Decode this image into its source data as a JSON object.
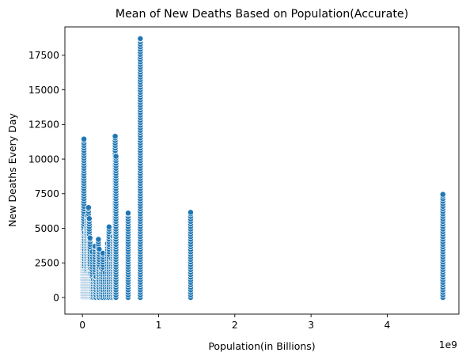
{
  "chart_data": {
    "type": "scatter",
    "title": "Mean of New Deaths Based on Population(Accurate)",
    "xlabel": "Population(in Billions)",
    "ylabel": "New Deaths Every Day",
    "x_offset_label": "1e9",
    "xlim": [
      -0.23,
      4.94
    ],
    "ylim": [
      -1200,
      19550
    ],
    "x_ticks": [
      0,
      1,
      2,
      3,
      4
    ],
    "x_tick_labels": [
      "0",
      "1",
      "2",
      "3",
      "4"
    ],
    "y_ticks": [
      0,
      2500,
      5000,
      7500,
      10000,
      12500,
      15000,
      17500
    ],
    "y_tick_labels": [
      "0",
      "2500",
      "5000",
      "7500",
      "10000",
      "12500",
      "15000",
      "17500"
    ],
    "grid": false,
    "marker_color": "#1f77b4",
    "marker_edge_color": "#ffffff",
    "columns": [
      {
        "x": 0.003,
        "max": 3800
      },
      {
        "x": 0.01,
        "max": 8800
      },
      {
        "x": 0.02,
        "max": 11450
      },
      {
        "x": 0.03,
        "max": 4700
      },
      {
        "x": 0.04,
        "max": 2000
      },
      {
        "x": 0.05,
        "max": 5000
      },
      {
        "x": 0.06,
        "max": 5900
      },
      {
        "x": 0.07,
        "max": 1700
      },
      {
        "x": 0.08,
        "max": 6500
      },
      {
        "x": 0.09,
        "max": 5700
      },
      {
        "x": 0.1,
        "max": 4300
      },
      {
        "x": 0.11,
        "max": 2100
      },
      {
        "x": 0.12,
        "max": 1500
      },
      {
        "x": 0.13,
        "max": 3300
      },
      {
        "x": 0.145,
        "max": 1300
      },
      {
        "x": 0.165,
        "max": 3700
      },
      {
        "x": 0.18,
        "max": 1500
      },
      {
        "x": 0.21,
        "max": 4200
      },
      {
        "x": 0.22,
        "max": 3500
      },
      {
        "x": 0.25,
        "max": 2100
      },
      {
        "x": 0.27,
        "max": 3200
      },
      {
        "x": 0.3,
        "max": 1800
      },
      {
        "x": 0.33,
        "max": 3900
      },
      {
        "x": 0.35,
        "max": 5100
      },
      {
        "x": 0.38,
        "max": 2800
      },
      {
        "x": 0.4,
        "max": 4400
      },
      {
        "x": 0.425,
        "max": 5700
      },
      {
        "x": 0.43,
        "max": 11650
      },
      {
        "x": 0.44,
        "max": 10200
      },
      {
        "x": 0.6,
        "max": 6100
      },
      {
        "x": 0.76,
        "max": 18700
      },
      {
        "x": 1.42,
        "max": 6150
      },
      {
        "x": 4.73,
        "max": 7450
      }
    ]
  }
}
